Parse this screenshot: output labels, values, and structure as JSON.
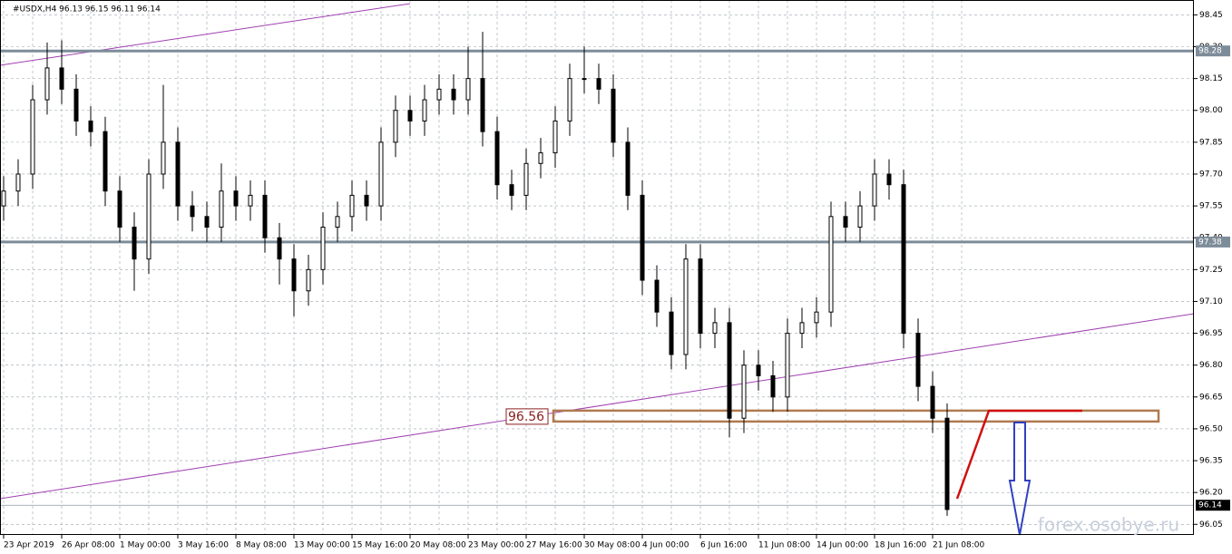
{
  "chart_data": {
    "type": "candlestick",
    "title": "#USDX,H4  96.13 96.15 96.11 96.14",
    "watermark": "forex.osobye.ru",
    "xlabels": [
      "23 Apr 2019",
      "26 Apr 08:00",
      "1 May 00:00",
      "3 May 16:00",
      "8 May 08:00",
      "13 May 00:00",
      "15 May 16:00",
      "20 May 08:00",
      "23 May 00:00",
      "27 May 16:00",
      "30 May 08:00",
      "4 Jun 00:00",
      "6 Jun 16:00",
      "11 Jun 08:00",
      "14 Jun 00:00",
      "18 Jun 16:00",
      "21 Jun 08:00"
    ],
    "open": [
      97.55,
      97.62,
      97.7,
      98.05,
      98.2,
      98.1,
      97.95,
      97.9,
      97.62,
      97.45,
      97.3,
      97.7,
      97.85,
      97.55,
      97.5,
      97.45,
      97.62,
      97.55,
      97.6,
      97.4,
      97.3,
      97.15,
      97.25,
      97.45,
      97.5,
      97.6,
      97.55,
      97.85,
      98.0,
      97.95,
      98.05,
      98.1,
      98.05,
      98.15,
      97.9,
      97.65,
      97.6,
      97.75,
      97.8,
      97.95,
      98.15,
      98.15,
      98.1,
      97.85,
      97.6,
      97.2,
      97.05,
      96.85,
      97.3,
      96.95,
      97.0,
      96.55,
      96.8,
      96.75,
      96.65,
      96.95,
      97.0,
      97.05,
      97.5,
      97.45,
      97.55,
      97.7,
      97.65,
      96.95,
      96.7,
      96.55
    ],
    "high": [
      97.69,
      97.77,
      98.12,
      98.32,
      98.33,
      98.17,
      98.02,
      97.97,
      97.69,
      97.52,
      97.77,
      98.12,
      97.92,
      97.62,
      97.57,
      97.75,
      97.69,
      97.67,
      97.67,
      97.47,
      97.37,
      97.32,
      97.52,
      97.57,
      97.67,
      97.67,
      97.92,
      98.07,
      98.07,
      98.12,
      98.17,
      98.17,
      98.3,
      98.37,
      97.97,
      97.72,
      97.82,
      97.87,
      98.02,
      98.22,
      98.3,
      98.22,
      98.17,
      97.92,
      97.67,
      97.27,
      97.12,
      97.37,
      97.37,
      97.07,
      97.07,
      96.87,
      96.87,
      96.82,
      97.02,
      97.07,
      97.12,
      97.57,
      97.57,
      97.62,
      97.77,
      97.77,
      97.72,
      97.02,
      96.77,
      96.62
    ],
    "low": [
      97.48,
      97.55,
      97.63,
      97.98,
      98.03,
      97.88,
      97.83,
      97.55,
      97.38,
      97.15,
      97.23,
      97.63,
      97.48,
      97.43,
      97.38,
      97.38,
      97.48,
      97.48,
      97.33,
      97.18,
      97.03,
      97.08,
      97.18,
      97.38,
      97.43,
      97.48,
      97.48,
      97.78,
      97.88,
      97.88,
      97.98,
      97.98,
      97.98,
      97.83,
      97.58,
      97.53,
      97.53,
      97.68,
      97.73,
      97.88,
      98.08,
      98.03,
      97.78,
      97.53,
      97.13,
      96.98,
      96.78,
      96.78,
      96.88,
      96.88,
      96.46,
      96.48,
      96.68,
      96.58,
      96.58,
      96.88,
      96.93,
      96.98,
      97.38,
      97.38,
      97.48,
      97.58,
      96.88,
      96.63,
      96.48,
      96.09
    ],
    "close": [
      97.62,
      97.7,
      98.05,
      98.2,
      98.1,
      97.95,
      97.9,
      97.62,
      97.45,
      97.3,
      97.7,
      97.85,
      97.55,
      97.5,
      97.45,
      97.62,
      97.55,
      97.6,
      97.4,
      97.3,
      97.15,
      97.25,
      97.45,
      97.5,
      97.6,
      97.55,
      97.85,
      98.0,
      97.95,
      98.05,
      98.1,
      98.05,
      98.15,
      97.9,
      97.65,
      97.6,
      97.75,
      97.8,
      97.95,
      98.15,
      98.15,
      98.1,
      97.85,
      97.6,
      97.2,
      97.05,
      96.85,
      97.3,
      96.95,
      97.0,
      96.55,
      96.8,
      96.75,
      96.65,
      96.95,
      97.0,
      97.05,
      97.5,
      97.45,
      97.55,
      97.7,
      97.65,
      96.95,
      96.7,
      96.55,
      96.12
    ],
    "ylim": [
      96.0,
      98.52
    ],
    "yticks": [
      {
        "value": 98.45,
        "label": "98.45"
      },
      {
        "value": 98.3,
        "label": "98.30"
      },
      {
        "value": 98.15,
        "label": "98.15"
      },
      {
        "value": 98.0,
        "label": "98.00"
      },
      {
        "value": 97.85,
        "label": "97.85"
      },
      {
        "value": 97.7,
        "label": "97.70"
      },
      {
        "value": 97.55,
        "label": "97.55"
      },
      {
        "value": 97.4,
        "label": "97.40"
      },
      {
        "value": 97.25,
        "label": "97.25"
      },
      {
        "value": 97.1,
        "label": "97.10"
      },
      {
        "value": 96.95,
        "label": "96.95"
      },
      {
        "value": 96.8,
        "label": "96.80"
      },
      {
        "value": 96.65,
        "label": "96.65"
      },
      {
        "value": 96.5,
        "label": "96.50"
      },
      {
        "value": 96.35,
        "label": "96.35"
      },
      {
        "value": 96.2,
        "label": "96.20"
      },
      {
        "value": 96.05,
        "label": "96.05"
      }
    ],
    "levels": [
      98.28,
      97.38
    ],
    "current_price": 96.14,
    "zone_level": 96.56,
    "grid": true
  }
}
